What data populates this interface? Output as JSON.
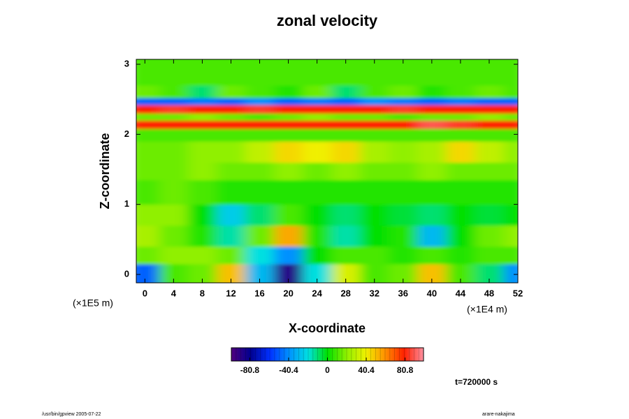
{
  "chart_data": {
    "type": "heatmap",
    "title": "zonal velocity",
    "x_label": "X-coordinate",
    "y_label": "Z-coordinate",
    "x_unit": "(×1E4 m)",
    "y_unit": "(×1E5 m)",
    "time_label": "t=720000 s",
    "footer_left": "/usr/bin/gpview 2005-07-22",
    "footer_right": "arare-nakajima",
    "xlim": [
      -1.2,
      52
    ],
    "ylim": [
      -0.12,
      3.07
    ],
    "xticks": [
      0,
      4,
      8,
      12,
      16,
      20,
      24,
      28,
      32,
      36,
      40,
      44,
      48,
      52
    ],
    "yticks": [
      0,
      1,
      2,
      3
    ],
    "x_bins": [
      -1.2,
      2,
      6,
      10,
      14,
      18,
      22,
      26,
      30,
      34,
      38,
      42,
      46,
      50,
      52
    ],
    "y_bins": [
      -0.12,
      0.15,
      0.4,
      0.7,
      1.0,
      1.35,
      1.6,
      1.9,
      2.08,
      2.2,
      2.3,
      2.42,
      2.52,
      2.7,
      3.07
    ],
    "values": [
      [
        -50,
        10,
        15,
        50,
        -30,
        -90,
        -20,
        35,
        10,
        15,
        50,
        10,
        -10,
        -40
      ],
      [
        15,
        20,
        20,
        15,
        -20,
        -40,
        0,
        10,
        10,
        5,
        10,
        5,
        10,
        10
      ],
      [
        25,
        15,
        5,
        -15,
        15,
        55,
        5,
        -15,
        0,
        5,
        -30,
        0,
        15,
        20
      ],
      [
        20,
        20,
        0,
        -25,
        -10,
        10,
        0,
        -10,
        0,
        -5,
        -10,
        0,
        -5,
        0
      ],
      [
        10,
        15,
        10,
        5,
        5,
        5,
        5,
        5,
        5,
        5,
        5,
        5,
        5,
        5
      ],
      [
        15,
        15,
        20,
        15,
        15,
        20,
        15,
        20,
        15,
        15,
        20,
        15,
        15,
        15
      ],
      [
        15,
        15,
        20,
        20,
        30,
        45,
        40,
        45,
        25,
        20,
        25,
        45,
        30,
        20
      ],
      [
        10,
        10,
        10,
        10,
        10,
        10,
        10,
        10,
        10,
        10,
        10,
        10,
        10,
        10
      ],
      [
        80,
        80,
        80,
        80,
        80,
        80,
        80,
        80,
        80,
        80,
        90,
        85,
        80,
        80
      ],
      [
        15,
        15,
        20,
        15,
        10,
        15,
        20,
        15,
        15,
        10,
        15,
        15,
        20,
        15
      ],
      [
        80,
        85,
        80,
        80,
        85,
        80,
        80,
        80,
        80,
        85,
        80,
        80,
        80,
        80
      ],
      [
        -50,
        -50,
        -45,
        -50,
        -40,
        -50,
        -45,
        -50,
        -40,
        -45,
        -50,
        -45,
        -50,
        -50
      ],
      [
        15,
        10,
        -10,
        15,
        10,
        5,
        15,
        -10,
        10,
        15,
        5,
        10,
        15,
        10
      ],
      [
        10,
        10,
        10,
        10,
        10,
        10,
        10,
        10,
        10,
        10,
        10,
        10,
        10,
        10
      ]
    ],
    "clim": [
      -100,
      100
    ],
    "cticks": [
      -80.8,
      -40.4,
      0,
      40.4,
      80.8
    ],
    "colormap": [
      "#50007f",
      "#00008f",
      "#0030ff",
      "#0090ff",
      "#00e0e0",
      "#00e000",
      "#90f000",
      "#f0f000",
      "#ff9000",
      "#ff2000",
      "#ff90a0"
    ]
  }
}
